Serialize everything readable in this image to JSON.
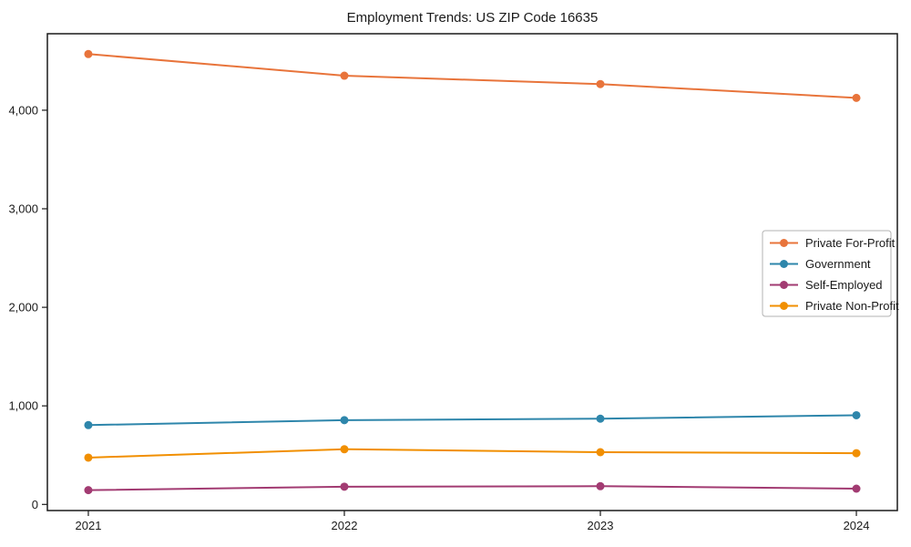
{
  "page": {
    "background": "#ffffff",
    "text_color": "#1a1a1a",
    "axis_color": "#1a1a1a",
    "legend_border_color": "#b3b3b3"
  },
  "chart_data": {
    "type": "line",
    "title": "Employment Trends: US ZIP Code 16635",
    "xlabel": "",
    "ylabel": "",
    "x": [
      2021,
      2022,
      2023,
      2024
    ],
    "xtick_labels": [
      "2021",
      "2022",
      "2023",
      "2024"
    ],
    "ytick_values": [
      0,
      1000,
      2000,
      3000,
      4000
    ],
    "ytick_labels": [
      "0",
      "1,000",
      "2,000",
      "3,000",
      "4,000"
    ],
    "xlim": [
      2020.84,
      2024.16
    ],
    "ylim": [
      -62,
      4776
    ],
    "grid": false,
    "legend_position": "center-right",
    "marker": "circle",
    "series": [
      {
        "name": "Private For-Profit",
        "color": "#E8743B",
        "values": [
          4570,
          4350,
          4265,
          4125
        ]
      },
      {
        "name": "Government",
        "color": "#2E86AB",
        "values": [
          805,
          855,
          870,
          905
        ]
      },
      {
        "name": "Self-Employed",
        "color": "#A23B72",
        "values": [
          145,
          180,
          185,
          160
        ]
      },
      {
        "name": "Private Non-Profit",
        "color": "#F18F01",
        "values": [
          475,
          560,
          530,
          520
        ]
      }
    ]
  }
}
